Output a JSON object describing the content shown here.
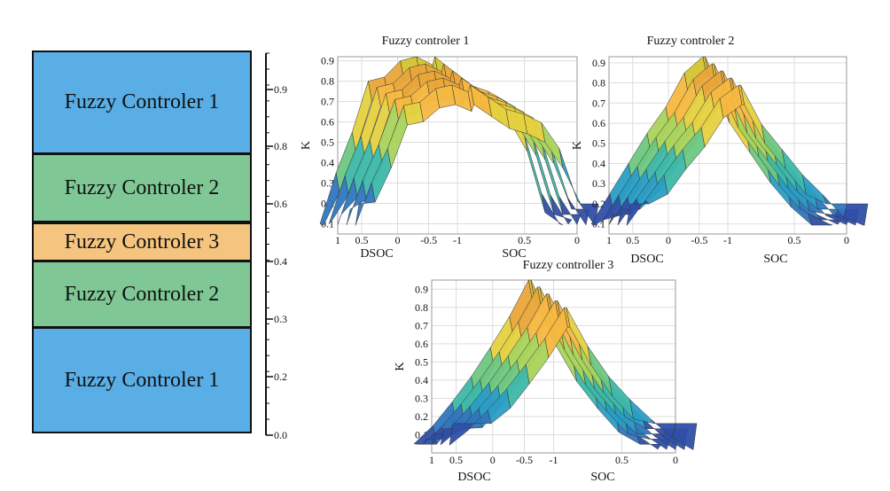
{
  "colors": {
    "fc1": "#5aaee6",
    "fc2": "#7fc896",
    "fc3": "#f5c47e",
    "border": "#111111",
    "grid": "#dddddd"
  },
  "stack": {
    "blocks": [
      {
        "label": "Fuzzy Controler 1",
        "from": 0.8,
        "to": 0.95,
        "color": "fc1"
      },
      {
        "label": "Fuzzy Controler 2",
        "from": 0.6,
        "to": 0.8,
        "color": "fc2"
      },
      {
        "label": "Fuzzy Controler 3",
        "from": 0.4,
        "to": 0.6,
        "color": "fc3"
      },
      {
        "label": "Fuzzy Controler 2",
        "from": 0.3,
        "to": 0.4,
        "color": "fc2"
      },
      {
        "label": "Fuzzy Controler 1",
        "from": 0.0,
        "to": 0.2,
        "color": "fc1"
      }
    ],
    "scale_ticks": [
      "0.0",
      "0.2",
      "0.3",
      "0.4",
      "0.6",
      "0.8",
      "0.9"
    ]
  },
  "chart_data": [
    {
      "type": "surface-3d",
      "title": "Fuzzy controler 1",
      "ylabel": "K",
      "xlabel_left": "DSOC",
      "xlabel_right": "SOC",
      "yticks": [
        "0.1",
        "0.2",
        "0.3",
        "0.4",
        "0.5",
        "0.6",
        "0.7",
        "0.8",
        "0.9"
      ],
      "xticks": [
        "1",
        "0.5",
        "0",
        "-0.5",
        "-1",
        "0.5",
        "0"
      ],
      "ylim": [
        0.05,
        0.92
      ],
      "profile_left": [
        0.1,
        0.35,
        0.55,
        0.8,
        0.82,
        0.9,
        0.92,
        0.88
      ],
      "profile_right": [
        0.92,
        0.85,
        0.78,
        0.75,
        0.7,
        0.55,
        0.25,
        0.1
      ]
    },
    {
      "type": "surface-3d",
      "title": "Fuzzy controler 2",
      "ylabel": "K",
      "xlabel_left": "DSOC",
      "xlabel_right": "SOC",
      "yticks": [
        "0.1",
        "0.2",
        "0.3",
        "0.4",
        "0.5",
        "0.6",
        "0.7",
        "0.8",
        "0.9"
      ],
      "xticks": [
        "1",
        "0.5",
        "0",
        "-0.5",
        "-1",
        "0.5",
        "0"
      ],
      "ylim": [
        0.05,
        0.93
      ],
      "profile_left": [
        0.1,
        0.25,
        0.4,
        0.55,
        0.68,
        0.85,
        0.93
      ],
      "profile_right": [
        0.93,
        0.7,
        0.55,
        0.4,
        0.28,
        0.15,
        0.1
      ]
    },
    {
      "type": "surface-3d",
      "title": "Fuzzy controller 3",
      "ylabel": "K",
      "xlabel_left": "DSOC",
      "xlabel_right": "SOC",
      "yticks": [
        "0.1",
        "0.2",
        "0.3",
        "0.4",
        "0.5",
        "0.6",
        "0.7",
        "0.8",
        "0.9"
      ],
      "xticks": [
        "1",
        "0.5",
        "0",
        "-0.5",
        "-1",
        "0.5",
        "0"
      ],
      "ylim": [
        0.0,
        0.95
      ],
      "profile_left": [
        0.05,
        0.15,
        0.28,
        0.42,
        0.58,
        0.75,
        0.95
      ],
      "profile_right": [
        0.95,
        0.7,
        0.5,
        0.35,
        0.22,
        0.1,
        0.02
      ]
    }
  ]
}
